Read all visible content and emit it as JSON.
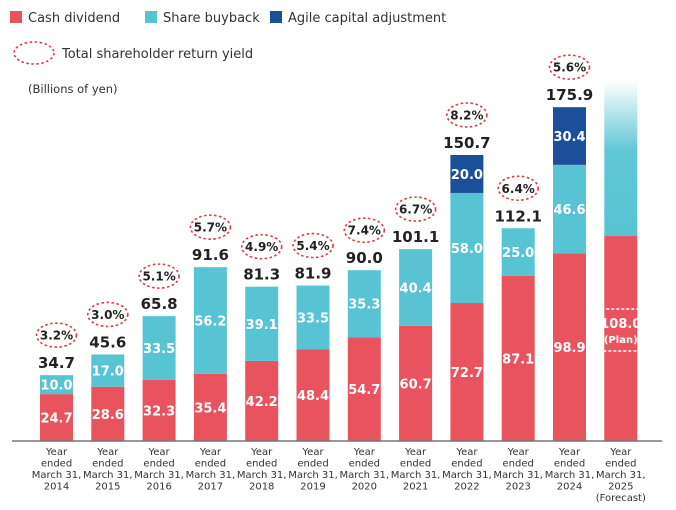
{
  "legend": {
    "cash_dividend": "Cash dividend",
    "share_buyback": "Share buyback",
    "agile": "Agile capital adjustment",
    "yield": "Total shareholder return yield"
  },
  "unit_label": "(Billions of yen)",
  "colors": {
    "cash_dividend": "#e9535d",
    "share_buyback": "#58c4d3",
    "agile": "#1b4f9a",
    "yield_ring": "#e23b46",
    "axis": "#777777"
  },
  "chart_data": {
    "type": "bar",
    "stacked": true,
    "ylim": [
      0,
      190
    ],
    "categories": [
      [
        "Year",
        "ended",
        "March 31,",
        "2014"
      ],
      [
        "Year",
        "ended",
        "March 31,",
        "2015"
      ],
      [
        "Year",
        "ended",
        "March 31,",
        "2016"
      ],
      [
        "Year",
        "ended",
        "March 31,",
        "2017"
      ],
      [
        "Year",
        "ended",
        "March 31,",
        "2018"
      ],
      [
        "Year",
        "ended",
        "March 31,",
        "2019"
      ],
      [
        "Year",
        "ended",
        "March 31,",
        "2020"
      ],
      [
        "Year",
        "ended",
        "March 31,",
        "2021"
      ],
      [
        "Year",
        "ended",
        "March 31,",
        "2022"
      ],
      [
        "Year",
        "ended",
        "March 31,",
        "2023"
      ],
      [
        "Year",
        "ended",
        "March 31,",
        "2024"
      ],
      [
        "Year",
        "ended",
        "March 31,",
        "2025",
        "(Forecast)"
      ]
    ],
    "series": [
      {
        "name": "Cash dividend",
        "values": [
          24.7,
          28.6,
          32.3,
          35.4,
          42.2,
          48.4,
          54.7,
          60.7,
          72.7,
          87.1,
          98.9,
          108.0
        ]
      },
      {
        "name": "Share buyback",
        "values": [
          10.0,
          17.0,
          33.5,
          56.2,
          39.1,
          33.5,
          35.3,
          40.4,
          58.0,
          25.0,
          46.6,
          null
        ]
      },
      {
        "name": "Agile capital adjustment",
        "values": [
          null,
          null,
          null,
          null,
          null,
          null,
          null,
          null,
          20.0,
          null,
          30.4,
          null
        ]
      }
    ],
    "totals": [
      "34.7",
      "45.6",
      "65.8",
      "91.6",
      "81.3",
      "81.9",
      "90.0",
      "101.1",
      "150.7",
      "112.1",
      "175.9",
      null
    ],
    "yields": [
      "3.2%",
      "3.0%",
      "5.1%",
      "5.7%",
      "4.9%",
      "5.4%",
      "7.4%",
      "6.7%",
      "8.2%",
      "6.4%",
      "5.6%",
      null
    ],
    "forecast": {
      "value": "108.0",
      "note": "(Plan)",
      "faded_top": 190
    }
  }
}
